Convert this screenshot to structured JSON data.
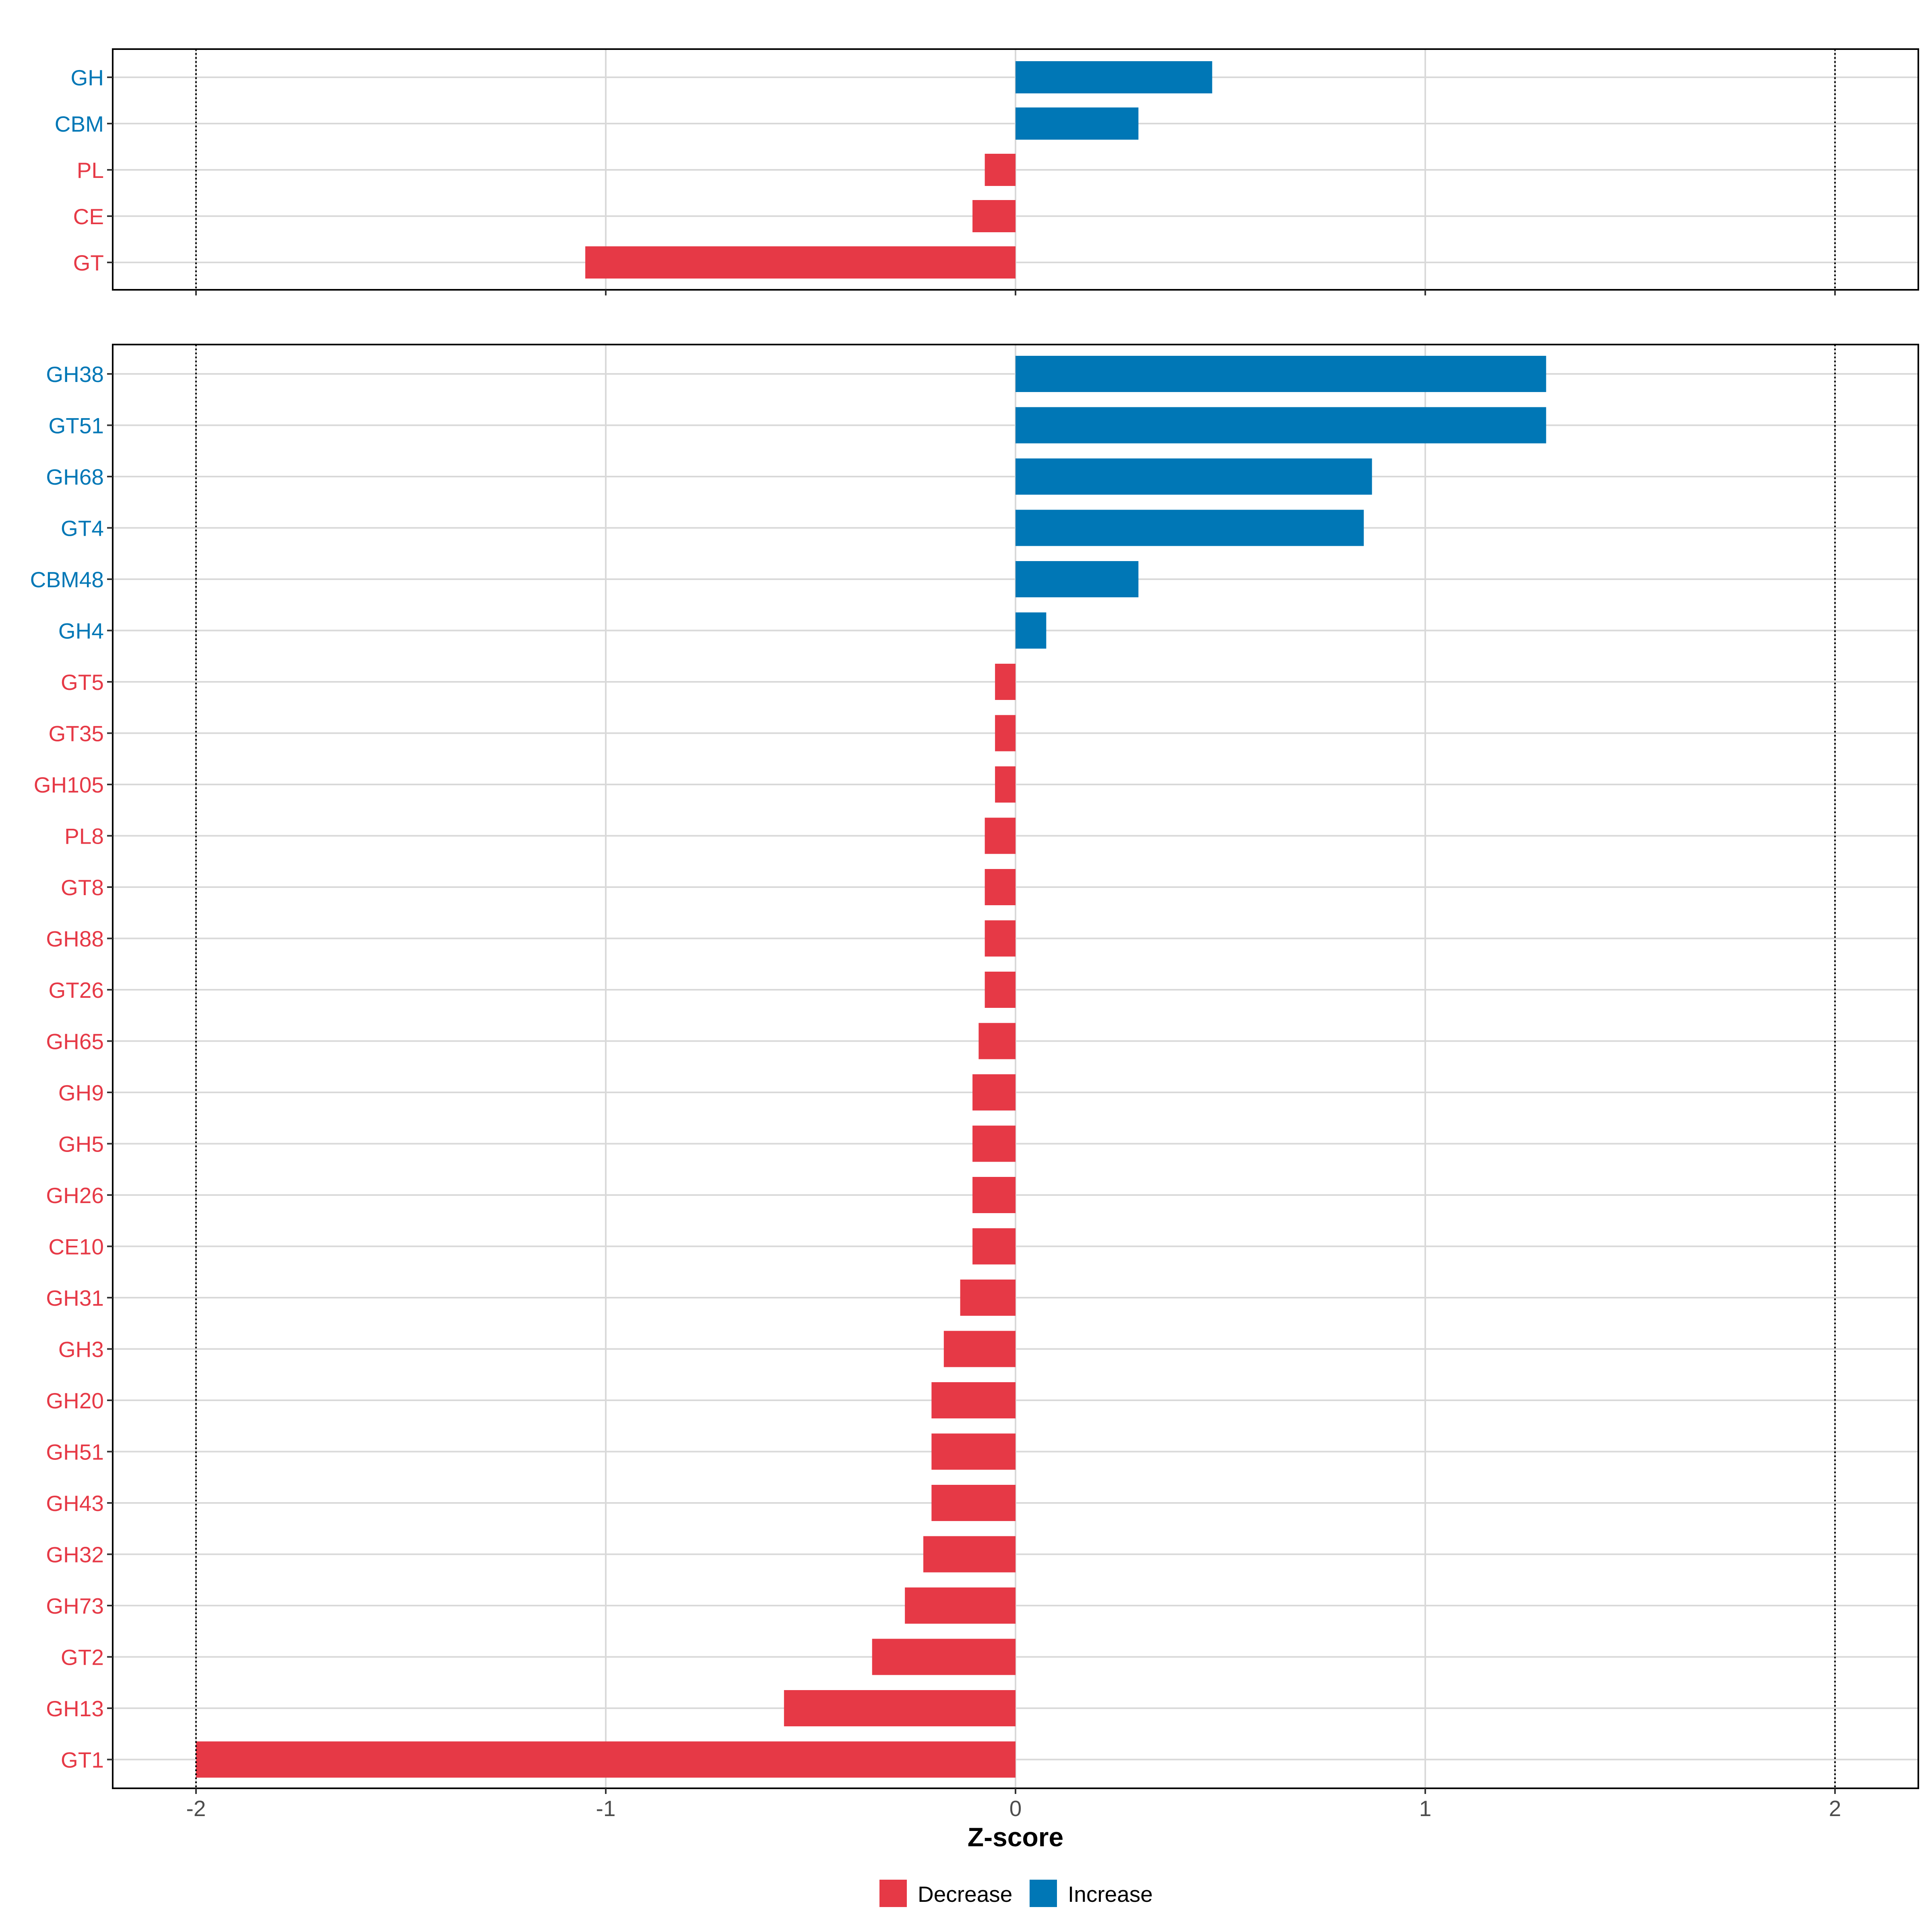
{
  "colors": {
    "decrease": "#E63946",
    "increase": "#0077B6",
    "grid": "#D9D9D9",
    "panel_border": "#000000"
  },
  "chart_data": [
    {
      "type": "bar",
      "orientation": "horizontal",
      "panel": "top",
      "categories": [
        "GH",
        "CBM",
        "PL",
        "CE",
        "GT"
      ],
      "values": [
        0.48,
        0.3,
        -0.075,
        -0.105,
        -1.05
      ],
      "xlim": [
        -2.2,
        2.2
      ],
      "reference_lines": [
        -2,
        2
      ]
    },
    {
      "type": "bar",
      "orientation": "horizontal",
      "panel": "bottom",
      "categories": [
        "GH38",
        "GT51",
        "GH68",
        "GT4",
        "CBM48",
        "GH4",
        "GT5",
        "GT35",
        "GH105",
        "PL8",
        "GT8",
        "GH88",
        "GT26",
        "GH65",
        "GH9",
        "GH5",
        "GH26",
        "CE10",
        "GH31",
        "GH3",
        "GH20",
        "GH51",
        "GH43",
        "GH32",
        "GH73",
        "GT2",
        "GH13",
        "GT1"
      ],
      "values": [
        1.295,
        1.295,
        0.87,
        0.85,
        0.3,
        0.075,
        -0.05,
        -0.05,
        -0.05,
        -0.075,
        -0.075,
        -0.075,
        -0.075,
        -0.09,
        -0.105,
        -0.105,
        -0.105,
        -0.105,
        -0.135,
        -0.175,
        -0.205,
        -0.205,
        -0.205,
        -0.225,
        -0.27,
        -0.35,
        -0.565,
        -2.0
      ],
      "xlim": [
        -2.2,
        2.2
      ],
      "xticks": [
        -2,
        -1,
        0,
        1,
        2
      ],
      "xtick_labels": [
        "-2",
        "-1",
        "0",
        "1",
        "2"
      ],
      "xlabel": "Z-score",
      "reference_lines": [
        -2,
        2
      ]
    }
  ],
  "legend": {
    "position": "bottom",
    "items": [
      {
        "label": "Decrease",
        "key": "decrease"
      },
      {
        "label": "Increase",
        "key": "increase"
      }
    ]
  }
}
